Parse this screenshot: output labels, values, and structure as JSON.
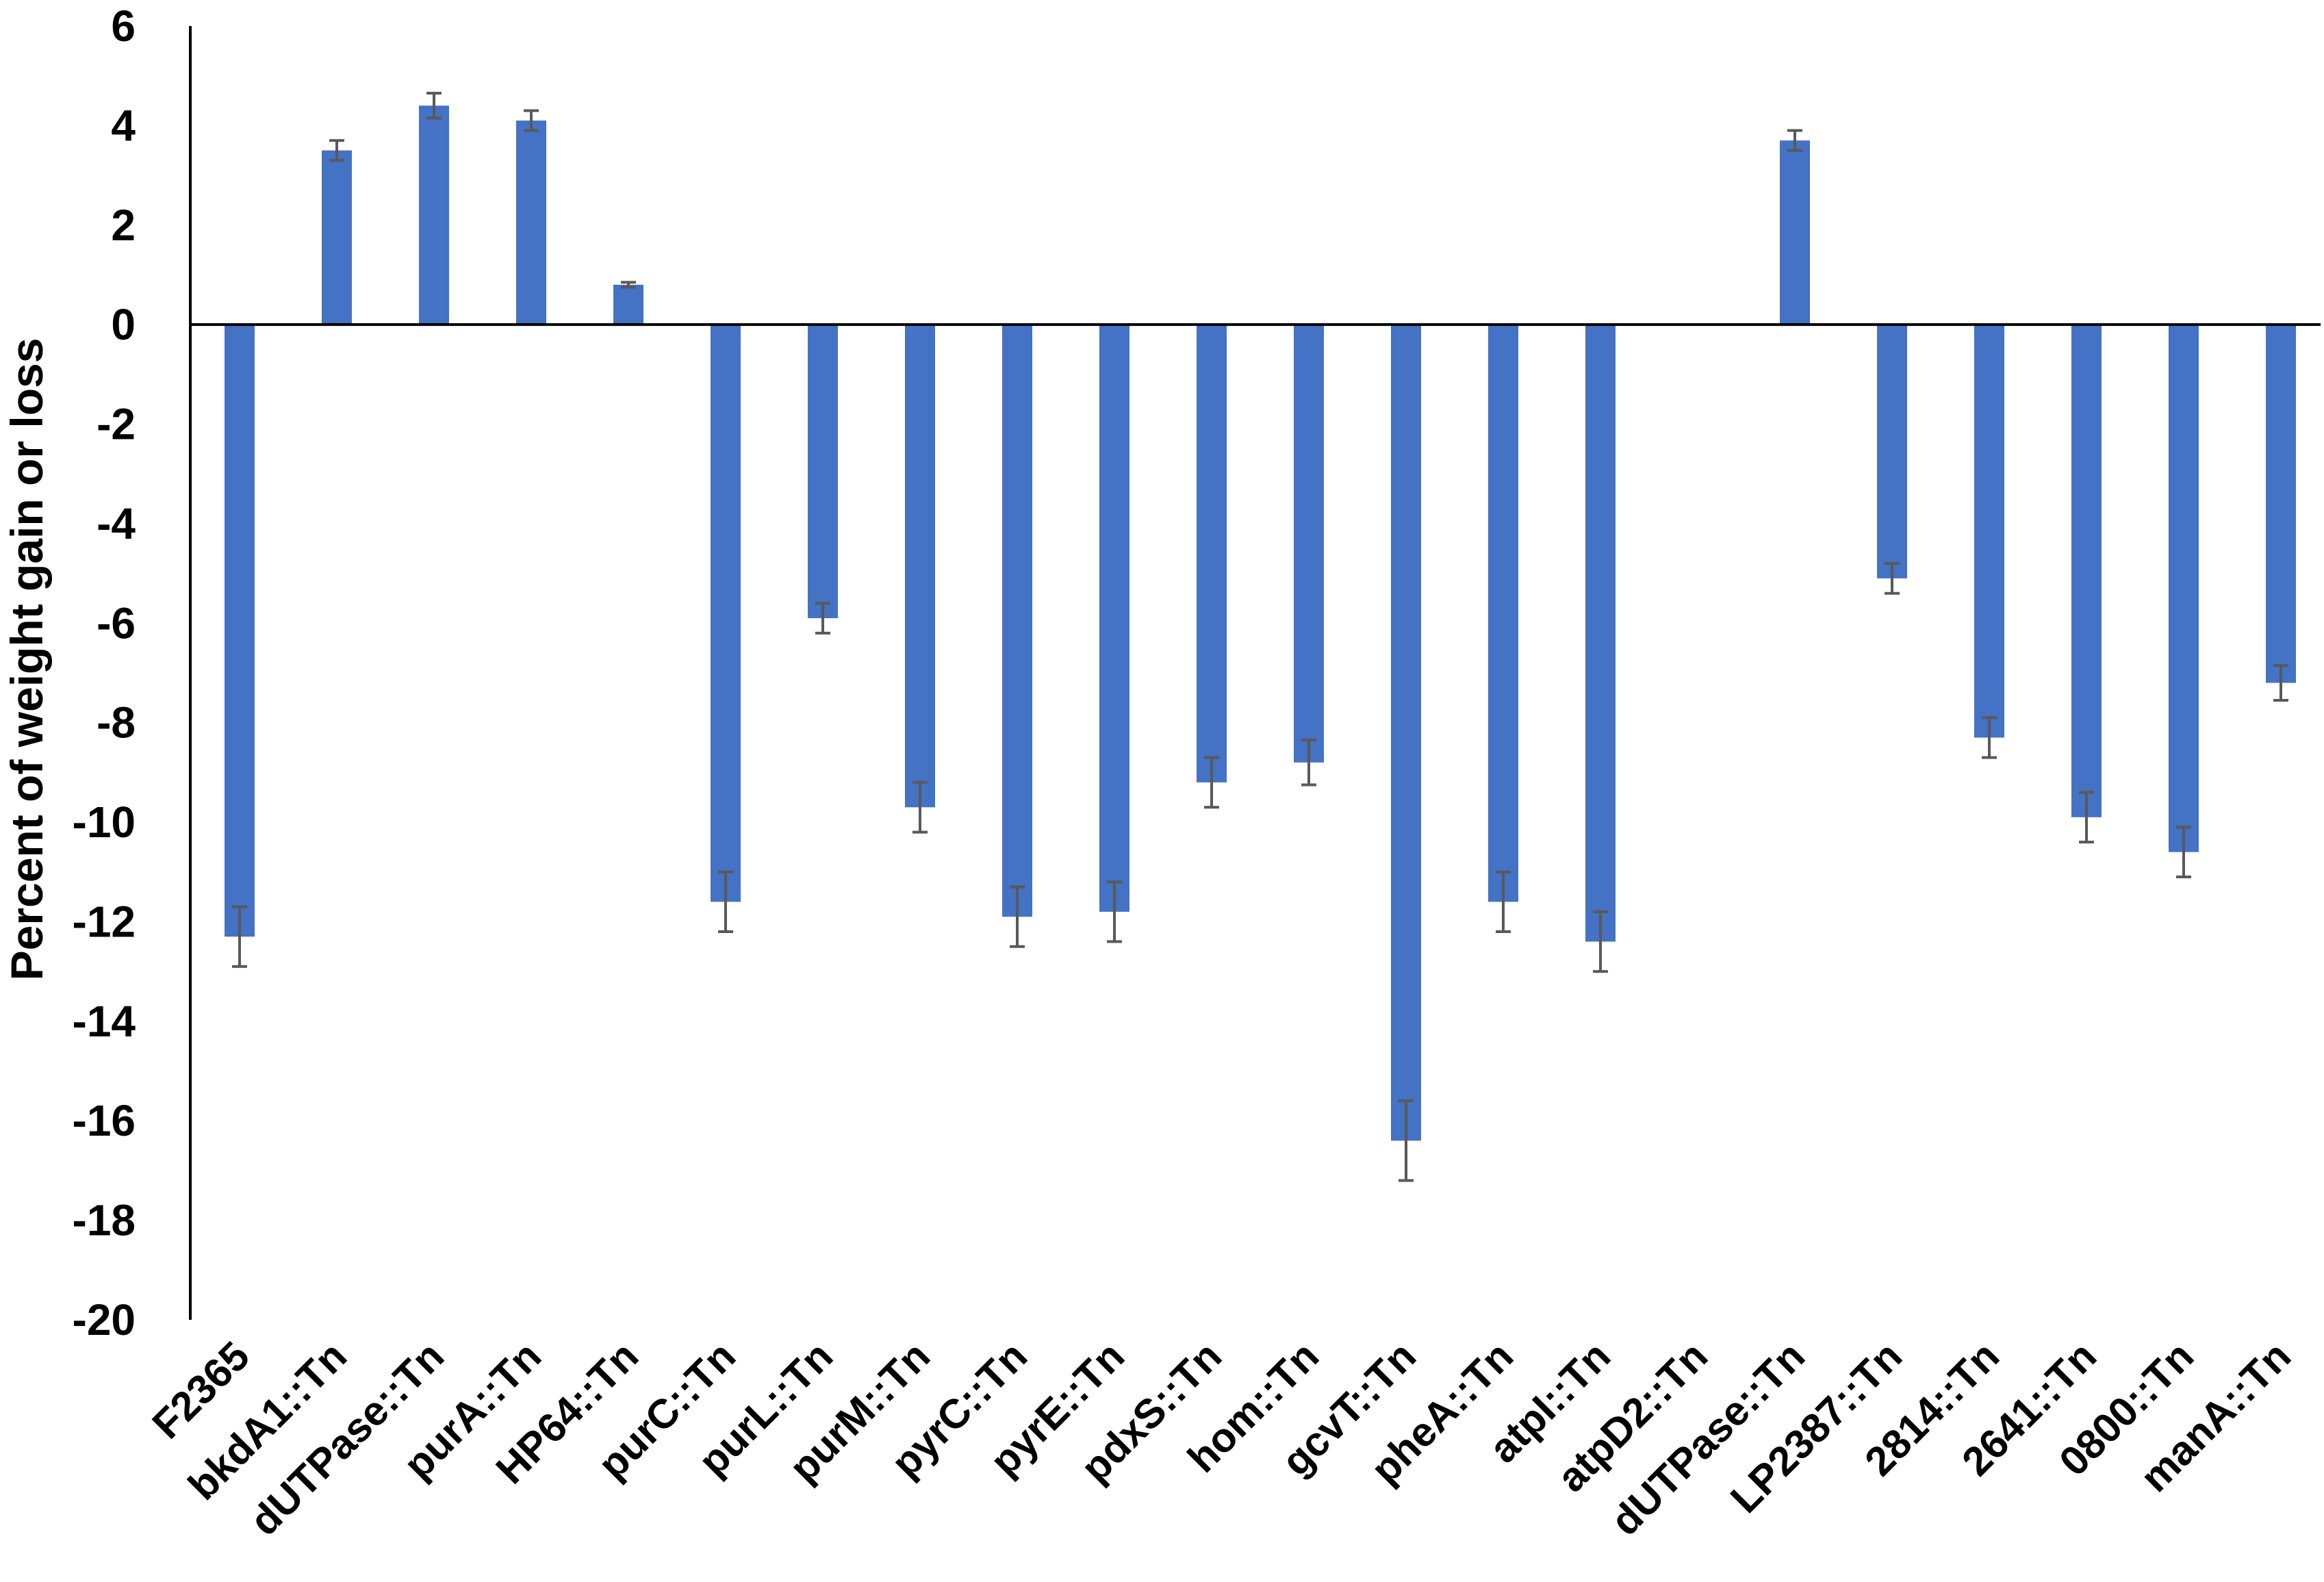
{
  "chart_data": {
    "type": "bar",
    "title": "",
    "xlabel": "",
    "ylabel": "Percent of weight gain or loss",
    "ylim": [
      -20,
      6
    ],
    "yticks": [
      6,
      4,
      2,
      0,
      -2,
      -4,
      -6,
      -8,
      -10,
      -12,
      -14,
      -16,
      -18,
      -20
    ],
    "grid": false,
    "legend": "none",
    "bar_color": "#4472C4",
    "error_bar_color": "#595959",
    "categories": [
      "F2365",
      "bkdA1::Tn",
      "dUTPase::Tn",
      "purA::Tn",
      "HP64::Tn",
      "purC::Tn",
      "purL::Tn",
      "purM::Tn",
      "pyrC::Tn",
      "pyrE::Tn",
      "pdxS::Tn",
      "hom::Tn",
      "gcvT::Tn",
      "pheA::Tn",
      "atpI::Tn",
      "atpD2::Tn",
      "dUTPase::Tn",
      "LP2387::Tn",
      "2814::Tn",
      "2641::Tn",
      "0800::Tn",
      "manA::Tn"
    ],
    "values": [
      -12.3,
      3.5,
      4.4,
      4.1,
      0.8,
      -11.6,
      -5.9,
      -9.7,
      -11.9,
      -11.8,
      -9.2,
      -8.8,
      -16.4,
      -11.6,
      -12.4,
      null,
      3.7,
      -5.1,
      -8.3,
      -9.9,
      -10.6,
      -7.2
    ],
    "errors": [
      0.6,
      0.2,
      0.25,
      0.2,
      0.05,
      0.6,
      0.3,
      0.5,
      0.6,
      0.6,
      0.5,
      0.45,
      0.8,
      0.6,
      0.6,
      null,
      0.2,
      0.3,
      0.4,
      0.5,
      0.5,
      0.35
    ]
  }
}
